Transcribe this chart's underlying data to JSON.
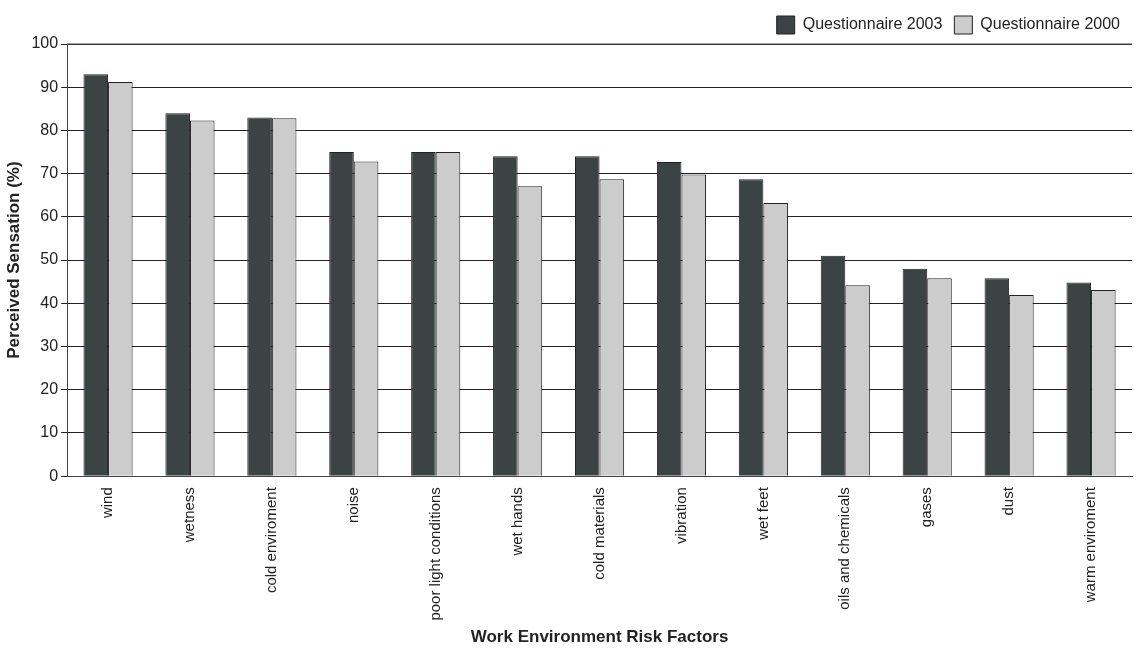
{
  "chart_data": {
    "type": "bar",
    "xlabel": "Work Environment Risk Factors",
    "ylabel": "Perceived Sensation (%)",
    "categories": [
      "wind",
      "wetness",
      "cold enviroment",
      "noise",
      "poor light conditions",
      "wet hands",
      "cold materials",
      "vibration",
      "wet feet",
      "oils and chemicals",
      "gases",
      "dust",
      "warm enviroment"
    ],
    "series": [
      {
        "name": "Questionnaire 2003",
        "color": "#3c4443",
        "values": [
          93,
          84,
          83,
          75,
          75,
          74,
          74,
          72.7,
          68.7,
          51,
          48,
          45.8,
          44.8
        ]
      },
      {
        "name": "Questionnaire 2000",
        "color": "#cccccc",
        "values": [
          91.2,
          82.3,
          82.8,
          72.8,
          75,
          67.1,
          68.7,
          69.8,
          63.2,
          44.2,
          45.8,
          41.9,
          43.1
        ]
      }
    ],
    "ylim": [
      0,
      100
    ],
    "yticks": [
      0,
      10,
      20,
      30,
      40,
      50,
      60,
      70,
      80,
      90,
      100
    ],
    "grid": "y",
    "legend": "top right"
  }
}
